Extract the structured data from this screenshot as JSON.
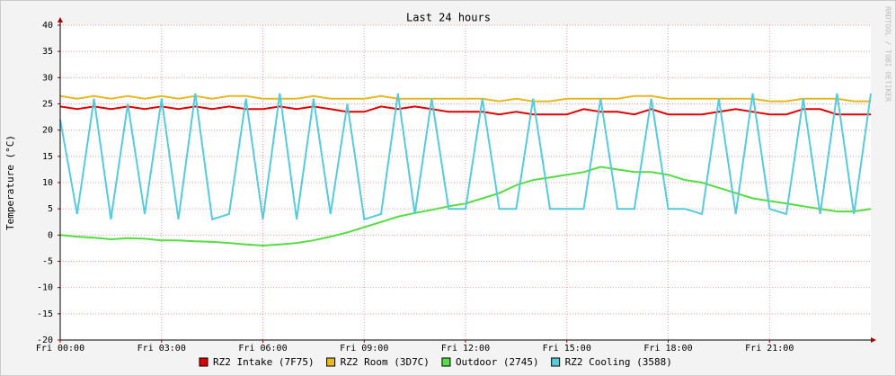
{
  "chart_data": {
    "type": "line",
    "title": "Last 24 hours",
    "y_label": "Temperature (°C)",
    "watermark": "RRDTOOL / TOBI OETIKER",
    "x": [
      0,
      0.5,
      1,
      1.5,
      2,
      2.5,
      3,
      3.5,
      4,
      4.5,
      5,
      5.5,
      6,
      6.5,
      7,
      7.5,
      8,
      8.5,
      9,
      9.5,
      10,
      10.5,
      11,
      11.5,
      12,
      12.5,
      13,
      13.5,
      14,
      14.5,
      15,
      15.5,
      16,
      16.5,
      17,
      17.5,
      18,
      18.5,
      19,
      19.5,
      20,
      20.5,
      21,
      21.5,
      22,
      22.5,
      23,
      23.5,
      24
    ],
    "xlim": [
      0,
      24
    ],
    "xticks": [
      {
        "value": 0,
        "label": "Fri 00:00"
      },
      {
        "value": 3,
        "label": "Fri 03:00"
      },
      {
        "value": 6,
        "label": "Fri 06:00"
      },
      {
        "value": 9,
        "label": "Fri 09:00"
      },
      {
        "value": 12,
        "label": "Fri 12:00"
      },
      {
        "value": 15,
        "label": "Fri 15:00"
      },
      {
        "value": 18,
        "label": "Fri 18:00"
      },
      {
        "value": 21,
        "label": "Fri 21:00"
      }
    ],
    "ylim": [
      -20,
      40
    ],
    "yticks": [
      -20,
      -15,
      -10,
      -5,
      0,
      5,
      10,
      15,
      20,
      25,
      30,
      35,
      40
    ],
    "grid": true,
    "series": [
      {
        "name": "RZ2 Intake (7F75)",
        "color": "#e00000",
        "values": [
          24.5,
          24,
          24.5,
          24,
          24.5,
          24,
          24.5,
          24,
          24.5,
          24,
          24.5,
          24,
          24,
          24.5,
          24,
          24.5,
          24,
          23.5,
          23.5,
          24.5,
          24,
          24.5,
          24,
          23.5,
          23.5,
          23.5,
          23,
          23.5,
          23,
          23,
          23,
          24,
          23.5,
          23.5,
          23,
          24,
          23,
          23,
          23,
          23.5,
          24,
          23.5,
          23,
          23,
          24,
          24,
          23,
          23,
          23
        ]
      },
      {
        "name": "RZ2 Room (3D7C)",
        "color": "#e8b820",
        "values": [
          26.5,
          26,
          26.5,
          26,
          26.5,
          26,
          26.5,
          26,
          26.5,
          26,
          26.5,
          26.5,
          26,
          26,
          26,
          26.5,
          26,
          26,
          26,
          26.5,
          26,
          26,
          26,
          26,
          26,
          26,
          25.5,
          26,
          25.5,
          25.5,
          26,
          26,
          26,
          26,
          26.5,
          26.5,
          26,
          26,
          26,
          26,
          26,
          26,
          25.5,
          25.5,
          26,
          26,
          26,
          25.5,
          25.5
        ]
      },
      {
        "name": "Outdoor (2745)",
        "color": "#55dd44",
        "values": [
          0,
          -0.3,
          -0.5,
          -0.8,
          -0.6,
          -0.7,
          -1,
          -1,
          -1.2,
          -1.3,
          -1.5,
          -1.8,
          -2,
          -1.8,
          -1.5,
          -1,
          -0.3,
          0.5,
          1.5,
          2.5,
          3.5,
          4.2,
          4.8,
          5.5,
          6,
          7,
          8,
          9.5,
          10.5,
          11,
          11.5,
          12,
          13,
          12.5,
          12,
          12,
          11.5,
          10.5,
          10,
          9,
          8,
          7,
          6.5,
          6,
          5.5,
          5,
          4.5,
          4.5,
          5
        ]
      },
      {
        "name": "RZ2 Cooling (3588)",
        "color": "#55ccdd",
        "values": [
          22,
          4,
          26,
          3,
          25,
          4,
          26,
          3,
          27,
          3,
          4,
          26,
          3,
          27,
          3,
          26,
          4,
          25,
          3,
          4,
          27,
          4,
          26,
          5,
          5,
          26,
          5,
          5,
          26,
          5,
          5,
          5,
          26,
          5,
          5,
          26,
          5,
          5,
          4,
          26,
          4,
          27,
          5,
          4,
          26,
          4,
          27,
          4,
          27
        ]
      }
    ]
  }
}
